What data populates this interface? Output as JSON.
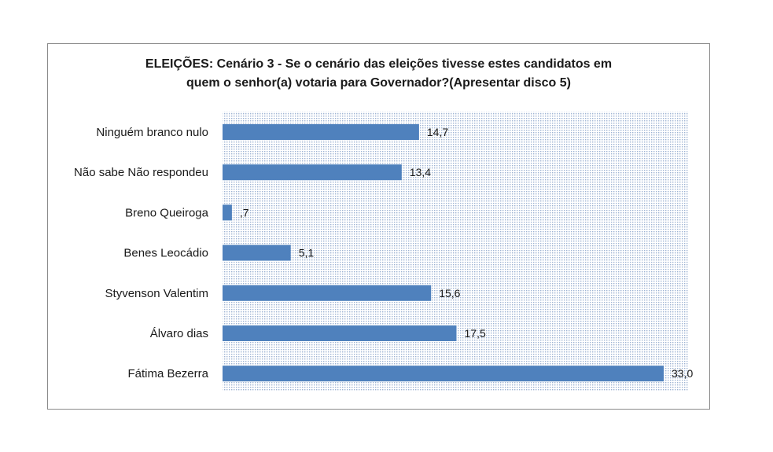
{
  "chart_data": {
    "type": "bar",
    "orientation": "horizontal",
    "title_lines": [
      "ELEIÇÕES: Cenário 3 - Se o cenário das eleições tivesse estes candidatos em",
      "quem o senhor(a) votaria  para Governador?(Apresentar disco 5)"
    ],
    "categories": [
      "Ninguém branco nulo",
      "Não sabe Não respondeu",
      "Breno Queiroga",
      "Benes Leocádio",
      "Styvenson Valentim",
      "Álvaro dias",
      "Fátima Bezerra"
    ],
    "values": [
      14.7,
      13.4,
      0.7,
      5.1,
      15.6,
      17.5,
      33.0
    ],
    "value_labels": [
      "14,7",
      "13,4",
      ",7",
      "5,1",
      "15,6",
      "17,5",
      "33,0"
    ],
    "xlim": [
      0,
      35
    ],
    "bar_color": "#4f81bd",
    "plot_background": "dotted-blue",
    "grid": false,
    "legend": "none"
  }
}
